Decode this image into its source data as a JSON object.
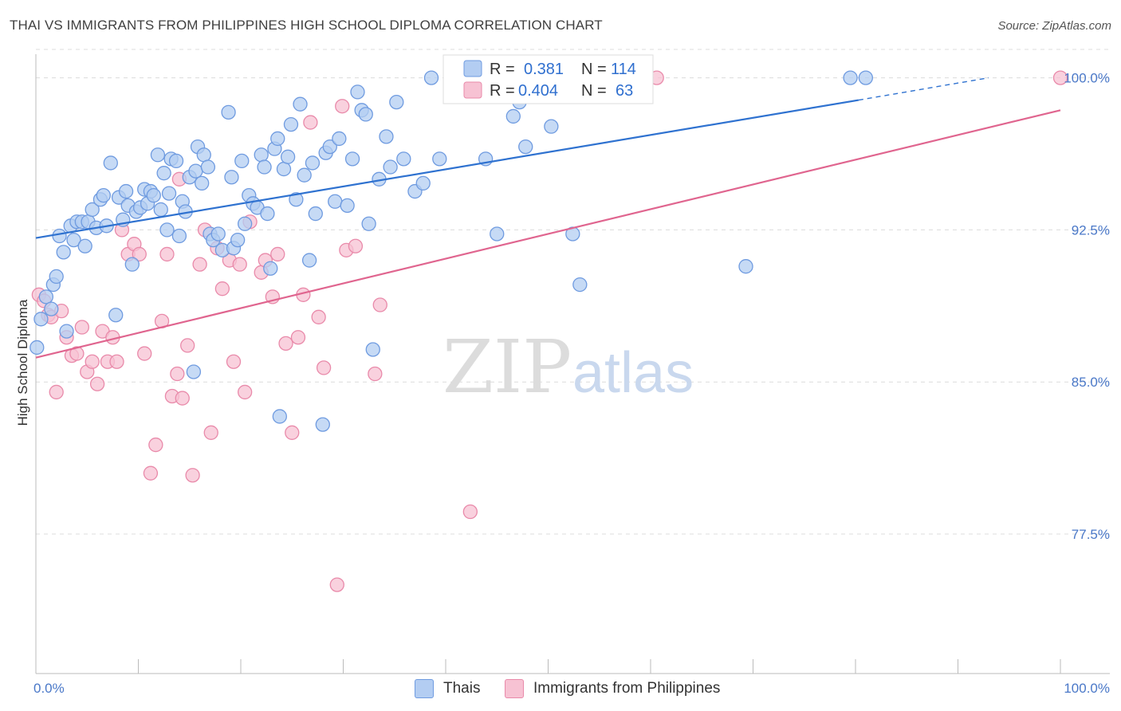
{
  "title": "THAI VS IMMIGRANTS FROM PHILIPPINES HIGH SCHOOL DIPLOMA CORRELATION CHART",
  "source": "Source: ZipAtlas.com",
  "watermark": {
    "zip": "ZIP",
    "atlas": "atlas"
  },
  "legend_top": {
    "rows": [
      {
        "r_label": "R =",
        "r_value": "0.381",
        "n_label": "N =",
        "n_value": "114"
      },
      {
        "r_label": "R =",
        "r_value": "0.404",
        "n_label": "N =",
        "n_value": "63"
      }
    ]
  },
  "legend_bottom": {
    "thai": "Thais",
    "phil": "Immigrants from Philippines"
  },
  "colors": {
    "thai_fill": "#b3cdf2",
    "thai_stroke": "#6f9be0",
    "thai_line": "#2f72d0",
    "phil_fill": "#f7c2d3",
    "phil_stroke": "#e98aaa",
    "phil_line": "#e0658f",
    "tick_text": "#4a78c8",
    "grid": "#dcdcdc"
  },
  "chart_data": {
    "type": "scatter",
    "ylabel": "High School Diploma",
    "xlabel": "",
    "x_tick_labels": [
      "0.0%",
      "100.0%"
    ],
    "y_tick_labels": [
      "100.0%",
      "92.5%",
      "85.0%",
      "77.5%"
    ],
    "y_ticks": [
      100.0,
      92.5,
      85.0,
      77.5
    ],
    "xlim": [
      0,
      100
    ],
    "ylim": [
      70.5,
      101.4
    ],
    "grid": "horizontal dashed",
    "series": [
      {
        "name": "Thais",
        "trend": {
          "x": [
            0,
            80.3
          ],
          "y": [
            92.1,
            98.9
          ],
          "dashed_extension_to": [
            93,
            100.0
          ]
        },
        "points": [
          [
            0.1,
            86.7
          ],
          [
            0.5,
            88.1
          ],
          [
            1.0,
            89.2
          ],
          [
            1.5,
            88.6
          ],
          [
            1.7,
            89.8
          ],
          [
            2.0,
            90.2
          ],
          [
            2.3,
            92.2
          ],
          [
            2.7,
            91.4
          ],
          [
            3.0,
            87.5
          ],
          [
            3.4,
            92.7
          ],
          [
            3.7,
            92.0
          ],
          [
            4.0,
            92.9
          ],
          [
            4.5,
            92.9
          ],
          [
            4.8,
            91.7
          ],
          [
            5.1,
            92.9
          ],
          [
            5.5,
            93.5
          ],
          [
            5.9,
            92.6
          ],
          [
            6.3,
            94.0
          ],
          [
            6.6,
            94.2
          ],
          [
            6.9,
            92.7
          ],
          [
            7.3,
            95.8
          ],
          [
            7.8,
            88.3
          ],
          [
            8.1,
            94.1
          ],
          [
            8.5,
            93.0
          ],
          [
            8.8,
            94.4
          ],
          [
            9.0,
            93.7
          ],
          [
            9.4,
            90.8
          ],
          [
            9.8,
            93.4
          ],
          [
            10.2,
            93.6
          ],
          [
            10.6,
            94.5
          ],
          [
            10.9,
            93.8
          ],
          [
            11.2,
            94.4
          ],
          [
            11.5,
            94.2
          ],
          [
            11.9,
            96.2
          ],
          [
            12.2,
            93.5
          ],
          [
            12.5,
            95.3
          ],
          [
            12.8,
            92.5
          ],
          [
            13.0,
            94.3
          ],
          [
            13.2,
            96.0
          ],
          [
            13.7,
            95.9
          ],
          [
            14.0,
            92.2
          ],
          [
            14.3,
            93.9
          ],
          [
            14.6,
            93.4
          ],
          [
            15.0,
            95.1
          ],
          [
            15.4,
            85.5
          ],
          [
            15.6,
            95.4
          ],
          [
            15.8,
            96.6
          ],
          [
            16.2,
            94.8
          ],
          [
            16.4,
            96.2
          ],
          [
            16.8,
            95.6
          ],
          [
            17.0,
            92.3
          ],
          [
            17.3,
            92.0
          ],
          [
            17.8,
            92.3
          ],
          [
            18.2,
            91.5
          ],
          [
            18.8,
            98.3
          ],
          [
            19.1,
            95.1
          ],
          [
            19.3,
            91.6
          ],
          [
            19.7,
            92.0
          ],
          [
            20.1,
            95.9
          ],
          [
            20.4,
            92.8
          ],
          [
            20.8,
            94.2
          ],
          [
            21.2,
            93.8
          ],
          [
            21.6,
            93.6
          ],
          [
            22.0,
            96.2
          ],
          [
            22.3,
            95.6
          ],
          [
            22.6,
            93.3
          ],
          [
            22.9,
            90.6
          ],
          [
            23.3,
            96.5
          ],
          [
            23.6,
            97.0
          ],
          [
            23.8,
            83.3
          ],
          [
            24.2,
            95.5
          ],
          [
            24.6,
            96.1
          ],
          [
            24.9,
            97.7
          ],
          [
            25.4,
            94.0
          ],
          [
            25.8,
            98.7
          ],
          [
            26.2,
            95.2
          ],
          [
            26.7,
            91.0
          ],
          [
            27.0,
            95.8
          ],
          [
            27.3,
            93.3
          ],
          [
            28.0,
            82.9
          ],
          [
            28.3,
            96.3
          ],
          [
            28.7,
            96.6
          ],
          [
            29.2,
            93.9
          ],
          [
            29.6,
            97.0
          ],
          [
            30.4,
            93.7
          ],
          [
            30.9,
            96.0
          ],
          [
            31.4,
            99.3
          ],
          [
            31.8,
            98.4
          ],
          [
            32.2,
            98.2
          ],
          [
            32.5,
            92.8
          ],
          [
            32.9,
            86.6
          ],
          [
            33.5,
            95.0
          ],
          [
            34.2,
            97.1
          ],
          [
            34.6,
            95.6
          ],
          [
            35.2,
            98.8
          ],
          [
            35.9,
            96.0
          ],
          [
            37.0,
            94.4
          ],
          [
            37.8,
            94.8
          ],
          [
            38.6,
            100.0
          ],
          [
            39.4,
            96.0
          ],
          [
            41.6,
            99.7
          ],
          [
            42.2,
            100.0
          ],
          [
            43.9,
            96.0
          ],
          [
            45.0,
            92.3
          ],
          [
            46.6,
            98.1
          ],
          [
            47.2,
            98.8
          ],
          [
            47.8,
            96.6
          ],
          [
            50.3,
            97.6
          ],
          [
            52.4,
            92.3
          ],
          [
            53.1,
            89.8
          ],
          [
            69.3,
            90.7
          ],
          [
            79.5,
            100.0
          ],
          [
            81.0,
            100.0
          ]
        ]
      },
      {
        "name": "Immigrants from Philippines",
        "trend": {
          "x": [
            0,
            100
          ],
          "y": [
            86.2,
            98.4
          ]
        },
        "points": [
          [
            0.3,
            89.3
          ],
          [
            0.8,
            89.0
          ],
          [
            1.2,
            88.3
          ],
          [
            1.5,
            88.2
          ],
          [
            2.0,
            84.5
          ],
          [
            2.5,
            88.5
          ],
          [
            3.0,
            87.2
          ],
          [
            3.5,
            86.3
          ],
          [
            4.0,
            86.4
          ],
          [
            4.5,
            87.7
          ],
          [
            5.0,
            85.5
          ],
          [
            5.5,
            86.0
          ],
          [
            6.0,
            84.9
          ],
          [
            6.5,
            87.5
          ],
          [
            7.0,
            86.0
          ],
          [
            7.5,
            87.2
          ],
          [
            7.9,
            86.0
          ],
          [
            8.4,
            92.5
          ],
          [
            9.0,
            91.3
          ],
          [
            9.6,
            91.8
          ],
          [
            10.1,
            91.3
          ],
          [
            10.6,
            86.4
          ],
          [
            11.2,
            80.5
          ],
          [
            11.7,
            81.9
          ],
          [
            12.3,
            88.0
          ],
          [
            12.8,
            91.3
          ],
          [
            13.3,
            84.3
          ],
          [
            13.8,
            85.4
          ],
          [
            14.3,
            84.2
          ],
          [
            14.8,
            86.8
          ],
          [
            15.3,
            80.4
          ],
          [
            16.0,
            90.8
          ],
          [
            16.5,
            92.5
          ],
          [
            17.1,
            82.5
          ],
          [
            17.7,
            91.6
          ],
          [
            18.2,
            89.6
          ],
          [
            18.9,
            91.0
          ],
          [
            19.3,
            86.0
          ],
          [
            19.9,
            90.8
          ],
          [
            20.4,
            84.5
          ],
          [
            20.9,
            92.9
          ],
          [
            22.0,
            90.4
          ],
          [
            22.4,
            91.0
          ],
          [
            23.1,
            89.2
          ],
          [
            23.6,
            91.3
          ],
          [
            24.4,
            86.9
          ],
          [
            25.0,
            82.5
          ],
          [
            25.6,
            87.2
          ],
          [
            26.1,
            89.3
          ],
          [
            26.8,
            97.8
          ],
          [
            27.6,
            88.2
          ],
          [
            28.1,
            85.7
          ],
          [
            29.4,
            75.0
          ],
          [
            29.9,
            98.6
          ],
          [
            30.3,
            91.5
          ],
          [
            31.2,
            91.7
          ],
          [
            33.1,
            85.4
          ],
          [
            33.6,
            88.8
          ],
          [
            42.4,
            78.6
          ],
          [
            56.9,
            100.0
          ],
          [
            60.6,
            100.0
          ],
          [
            100.0,
            100.0
          ],
          [
            14.0,
            95.0
          ]
        ]
      }
    ]
  }
}
